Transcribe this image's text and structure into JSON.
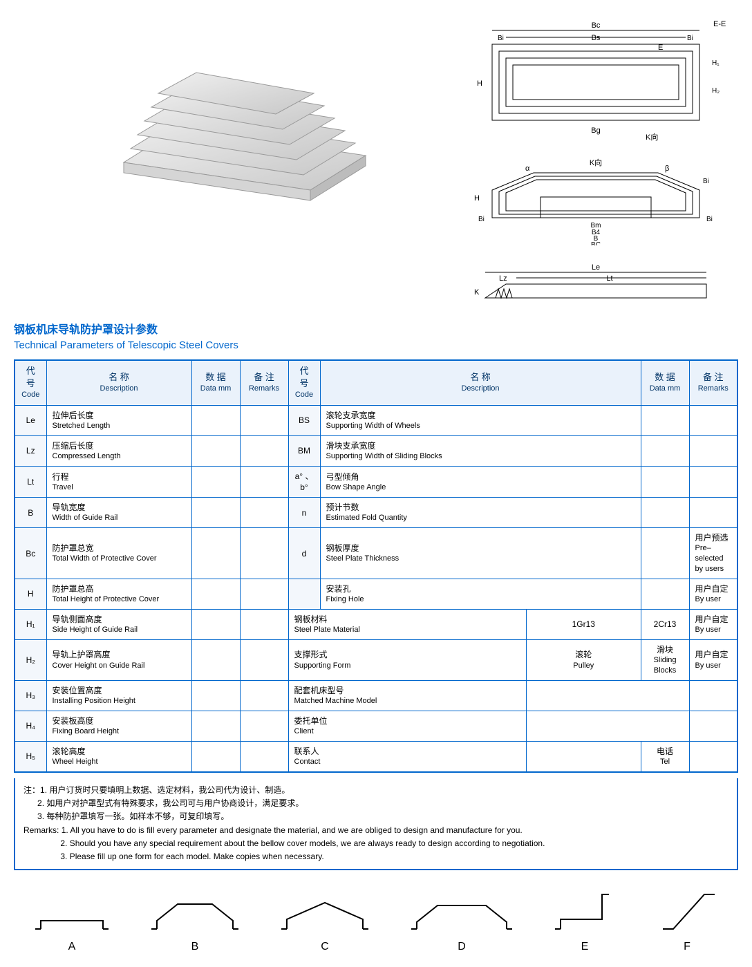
{
  "diagrams": {
    "top": {
      "labels": [
        "Bc",
        "Bs",
        "Bi",
        "Bi",
        "E-E",
        "E",
        "Bg",
        "K向",
        "H",
        "H₁",
        "H₂"
      ]
    },
    "mid": {
      "labels": [
        "K向",
        "α",
        "β",
        "Bi",
        "Bi",
        "Bi",
        "Bm",
        "B4",
        "B",
        "BC",
        "H"
      ]
    },
    "bottom": {
      "labels": [
        "Le",
        "Lt",
        "Lz",
        "K"
      ]
    }
  },
  "titles": {
    "zh": "钢板机床导轨防护罩设计参数",
    "en": "Technical Parameters of Telescopic Steel Covers"
  },
  "headers": {
    "code": {
      "zh": "代 号",
      "en": "Code"
    },
    "desc": {
      "zh": "名  称",
      "en": "Description"
    },
    "data": {
      "zh": "数 据",
      "en": "Data mm"
    },
    "remarks": {
      "zh": "备 注",
      "en": "Remarks"
    },
    "desc2": {
      "zh": "名 称",
      "en": "Description"
    }
  },
  "rows_left": [
    {
      "code": "Le",
      "zh": "拉伸后长度",
      "en": "Stretched Length"
    },
    {
      "code": "Lz",
      "zh": "压缩后长度",
      "en": "Compressed Length"
    },
    {
      "code": "Lt",
      "zh": "行程",
      "en": "Travel"
    },
    {
      "code": "B",
      "zh": "导轨宽度",
      "en": "Width of Guide Rail"
    },
    {
      "code": "Bc",
      "zh": "防护罩总宽",
      "en": "Total Width of Protective Cover"
    },
    {
      "code": "H",
      "zh": "防护罩总高",
      "en": "Total Height of Protective Cover"
    },
    {
      "code": "H₁",
      "zh": "导轨侧面高度",
      "en": "Side Height of Guide Rail"
    },
    {
      "code": "H₂",
      "zh": "导轨上护罩高度",
      "en": "Cover Height on Guide Rail"
    },
    {
      "code": "H₃",
      "zh": "安装位置高度",
      "en": "Installing Position Height"
    },
    {
      "code": "H₄",
      "zh": "安装板高度",
      "en": "Fixing Board Height"
    },
    {
      "code": "H₅",
      "zh": "滚轮高度",
      "en": "Wheel Height"
    }
  ],
  "rows_right": [
    {
      "code": "BS",
      "zh": "滚轮支承宽度",
      "en": "Supporting Width of Wheels",
      "remarks": ""
    },
    {
      "code": "BM",
      "zh": "滑块支承宽度",
      "en": "Supporting Width of Sliding Blocks",
      "remarks": ""
    },
    {
      "code": "a° 、b°",
      "zh": "弓型倾角",
      "en": "Bow Shape Angle",
      "remarks": ""
    },
    {
      "code": "n",
      "zh": "预计节数",
      "en": "Estimated Fold Quantity",
      "remarks": ""
    },
    {
      "code": "d",
      "zh": "钢板厚度",
      "en": "Steel Plate Thickness",
      "remarks_zh": "用户预选",
      "remarks_en": "Pre–selected by users"
    },
    {
      "special": "fixing",
      "zh": "安装孔",
      "en": "Fixing Hole",
      "remarks_zh": "用户自定",
      "remarks_en": "By user"
    },
    {
      "special": "material",
      "code_zh": "钢板材料",
      "code_en": "Steel Plate Material",
      "opt1": "1Gr13",
      "opt2": "2Cr13",
      "remarks_zh": "用户自定",
      "remarks_en": "By user"
    },
    {
      "special": "support",
      "code_zh": "支撑形式",
      "code_en": "Supporting Form",
      "opt1_zh": "滚轮",
      "opt1_en": "Pulley",
      "opt2_zh": "滑块",
      "opt2_en": "Sliding Blocks",
      "remarks_zh": "用户自定",
      "remarks_en": "By user"
    },
    {
      "special": "machine",
      "code_zh": "配套机床型号",
      "code_en": "Matched Machine Model"
    },
    {
      "special": "client",
      "code_zh": "委托单位",
      "code_en": "Client"
    },
    {
      "special": "contact",
      "code_zh": "联系人",
      "code_en": "Contact",
      "tel_zh": "电话",
      "tel_en": "Tel"
    }
  ],
  "notes": {
    "zh_prefix": "注：",
    "zh": [
      "1. 用户订货时只要填明上数据、选定材料，我公司代为设计、制造。",
      "2. 如用户对护罩型式有特殊要求，我公司可与用户协商设计，满足要求。",
      "3. 每种防护罩填写一张。如样本不够，可复印填写。"
    ],
    "en_prefix": "Remarks: ",
    "en": [
      "1. All you have to do is fill every parameter and designate the material, and we are obliged to design and manufacture for you.",
      "2. Should you have any special requirement about the bellow cover models, we are always ready to design according to negotiation.",
      "3. Please fill up one form for each model. Make copies when necessary."
    ]
  },
  "shapes": [
    "A",
    "B",
    "C",
    "D",
    "E",
    "F"
  ],
  "colors": {
    "accent": "#0066cc",
    "header_bg": "#eaf2fb"
  }
}
